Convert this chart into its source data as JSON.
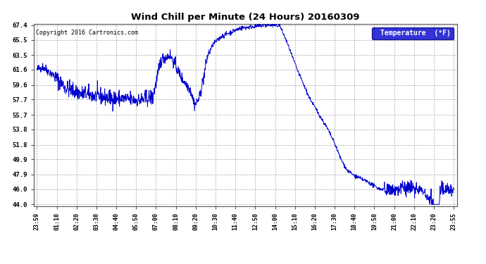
{
  "title": "Wind Chill per Minute (24 Hours) 20160309",
  "copyright": "Copyright 2016 Cartronics.com",
  "legend_label": "Temperature  (°F)",
  "line_color": "#0000cc",
  "background_color": "#ffffff",
  "plot_bg_color": "#ffffff",
  "grid_color": "#aaaaaa",
  "yticks": [
    44.0,
    46.0,
    47.9,
    49.9,
    51.8,
    53.8,
    55.7,
    57.7,
    59.6,
    61.6,
    63.5,
    65.5,
    67.4
  ],
  "ylim_min": 43.8,
  "ylim_max": 67.6,
  "xtick_labels": [
    "23:59",
    "01:10",
    "02:20",
    "03:30",
    "04:40",
    "05:50",
    "07:00",
    "08:10",
    "09:20",
    "10:30",
    "11:40",
    "12:50",
    "14:00",
    "15:10",
    "16:20",
    "17:30",
    "18:40",
    "19:50",
    "21:00",
    "22:10",
    "23:20",
    "23:55"
  ],
  "n_points": 1440,
  "figwidth": 6.9,
  "figheight": 3.75,
  "dpi": 100
}
